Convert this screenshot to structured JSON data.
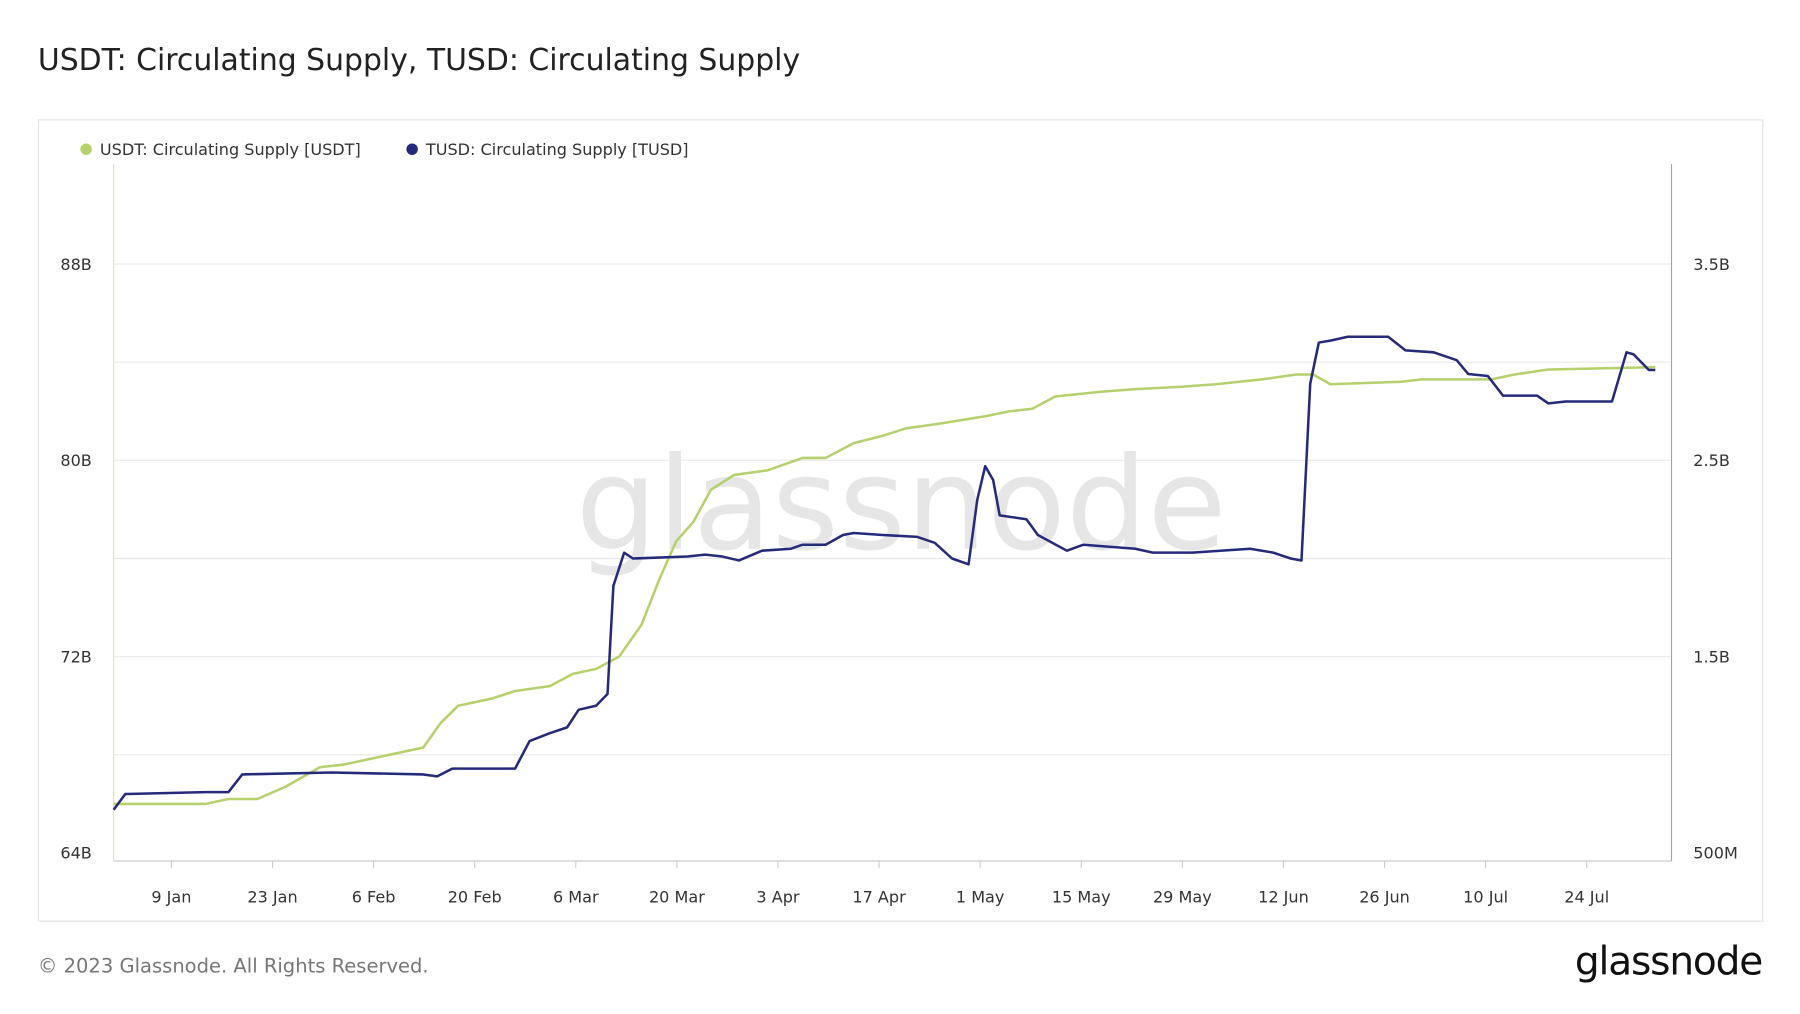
{
  "title": "USDT: Circulating Supply, TUSD: Circulating Supply",
  "footer": "© 2023 Glassnode. All Rights Reserved.",
  "logo": "glassnode",
  "watermark": "glassnode",
  "chart_data": {
    "type": "line",
    "title": "USDT: Circulating Supply, TUSD: Circulating Supply",
    "x_unit": "days since 1 Jan 2023",
    "xlim": [
      0,
      213.5
    ],
    "x_ticks": [
      {
        "day": 8,
        "label": "9 Jan"
      },
      {
        "day": 22,
        "label": "23 Jan"
      },
      {
        "day": 36,
        "label": "6 Feb"
      },
      {
        "day": 50,
        "label": "20 Feb"
      },
      {
        "day": 64,
        "label": "6 Mar"
      },
      {
        "day": 78,
        "label": "20 Mar"
      },
      {
        "day": 92,
        "label": "3 Apr"
      },
      {
        "day": 106,
        "label": "17 Apr"
      },
      {
        "day": 120,
        "label": "1 May"
      },
      {
        "day": 134,
        "label": "15 May"
      },
      {
        "day": 148,
        "label": "29 May"
      },
      {
        "day": 162,
        "label": "12 Jun"
      },
      {
        "day": 176,
        "label": "26 Jun"
      },
      {
        "day": 190,
        "label": "10 Jul"
      },
      {
        "day": 204,
        "label": "24 Jul"
      }
    ],
    "y_left": {
      "unit": "B",
      "ylim": [
        64,
        92
      ],
      "ticks": [
        {
          "v": 64,
          "label": "64B"
        },
        {
          "v": 72,
          "label": "72B"
        },
        {
          "v": 80,
          "label": "80B"
        },
        {
          "v": 88,
          "label": "88B"
        }
      ],
      "gridlines": [
        64,
        68,
        72,
        76,
        80,
        84,
        88
      ]
    },
    "y_right": {
      "unit": "B",
      "ylim": [
        0.5,
        4.0
      ],
      "ticks": [
        {
          "v": 0.5,
          "label": "500M"
        },
        {
          "v": 1.5,
          "label": "1.5B"
        },
        {
          "v": 2.5,
          "label": "2.5B"
        },
        {
          "v": 3.5,
          "label": "3.5B"
        }
      ]
    },
    "grid": true,
    "legend_position": "top-left",
    "series": [
      {
        "name": "USDT: Circulating Supply [USDT]",
        "axis": "left",
        "color": "#b5d16b",
        "x": [
          0,
          12.7,
          15.9,
          19.9,
          23.8,
          28.6,
          31.8,
          36.6,
          42.9,
          45.3,
          47.7,
          52.5,
          55.6,
          60.4,
          63.6,
          66.8,
          70,
          73.1,
          75.5,
          77.9,
          80.3,
          82.7,
          85.9,
          90.6,
          95.4,
          98.6,
          102.5,
          106.5,
          109.7,
          114.5,
          120.8,
          124,
          127.2,
          130.4,
          136.7,
          141.5,
          147.9,
          152.6,
          159,
          163.8,
          166.1,
          168.5,
          178.1,
          181.2,
          190.8,
          194,
          198.7,
          213.5
        ],
        "values": [
          66.0,
          66.0,
          66.2,
          66.2,
          66.7,
          67.5,
          67.6,
          67.9,
          68.3,
          69.3,
          70.0,
          70.3,
          70.6,
          70.8,
          71.3,
          71.5,
          72.0,
          73.3,
          75.1,
          76.7,
          77.5,
          78.8,
          79.4,
          79.6,
          80.1,
          80.1,
          80.7,
          81.0,
          81.3,
          81.5,
          81.8,
          82.0,
          82.1,
          82.6,
          82.8,
          82.9,
          83.0,
          83.1,
          83.3,
          83.5,
          83.5,
          83.1,
          83.2,
          83.3,
          83.3,
          83.5,
          83.7,
          83.8
        ]
      },
      {
        "name": "TUSD: Circulating Supply [TUSD]",
        "axis": "right",
        "color": "#252a7a",
        "x": [
          0,
          1.6,
          12.7,
          15.9,
          17.8,
          30.2,
          42.9,
          44.8,
          46.9,
          55.6,
          57.6,
          60.4,
          62.8,
          64.4,
          66.8,
          68.4,
          69.2,
          70.7,
          71.9,
          79.5,
          81.9,
          84.3,
          86.6,
          89.8,
          93.8,
          95.4,
          98.6,
          101,
          102.5,
          106.5,
          111.3,
          113.7,
          116.1,
          118.4,
          119.6,
          120.7,
          121.8,
          122.7,
          126.4,
          128,
          132,
          134.3,
          141.5,
          143.9,
          149.4,
          157.4,
          160.6,
          163,
          164.5,
          165.7,
          166.9,
          168.5,
          170.9,
          176.5,
          178.9,
          182.8,
          186,
          187.6,
          190.3,
          192.4,
          197.1,
          198.7,
          201.1,
          207.5,
          209.5,
          210.5,
          212.6,
          213.5
        ],
        "values": [
          0.72,
          0.8,
          0.81,
          0.81,
          0.9,
          0.91,
          0.9,
          0.89,
          0.93,
          0.93,
          1.07,
          1.11,
          1.14,
          1.23,
          1.25,
          1.31,
          1.86,
          2.03,
          2.0,
          2.01,
          2.02,
          2.01,
          1.99,
          2.04,
          2.05,
          2.07,
          2.07,
          2.12,
          2.13,
          2.12,
          2.11,
          2.08,
          2.0,
          1.97,
          2.3,
          2.47,
          2.4,
          2.22,
          2.2,
          2.12,
          2.04,
          2.07,
          2.05,
          2.03,
          2.03,
          2.05,
          2.03,
          2.0,
          1.99,
          2.89,
          3.1,
          3.11,
          3.13,
          3.13,
          3.06,
          3.05,
          3.01,
          2.94,
          2.93,
          2.83,
          2.83,
          2.79,
          2.8,
          2.8,
          3.05,
          3.04,
          2.96,
          2.96
        ]
      }
    ]
  }
}
